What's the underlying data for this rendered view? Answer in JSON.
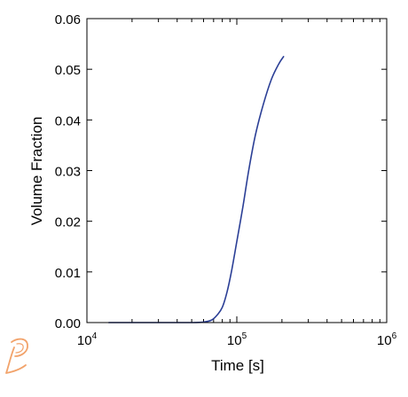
{
  "colors": {
    "line": "#2b3f96",
    "axis": "#000000",
    "logo": "#f2a36b"
  },
  "logo": {
    "icon": "thermo-calc-logo-icon",
    "text": ""
  },
  "chart_data": {
    "type": "line",
    "title": "",
    "xlabel": "Time [s]",
    "ylabel": "Volume Fraction",
    "x_scale": "log",
    "xlim": [
      10000,
      1000000
    ],
    "ylim": [
      0,
      0.06
    ],
    "x_ticks": [
      {
        "value": 10000,
        "base": "10",
        "exp": "4"
      },
      {
        "value": 100000,
        "base": "10",
        "exp": "5"
      },
      {
        "value": 1000000,
        "base": "10",
        "exp": "6"
      }
    ],
    "y_ticks": [
      {
        "value": 0.0,
        "label": "0.00"
      },
      {
        "value": 0.01,
        "label": "0.01"
      },
      {
        "value": 0.02,
        "label": "0.02"
      },
      {
        "value": 0.03,
        "label": "0.03"
      },
      {
        "value": 0.04,
        "label": "0.04"
      },
      {
        "value": 0.05,
        "label": "0.05"
      },
      {
        "value": 0.06,
        "label": "0.06"
      }
    ],
    "grid": false,
    "series": [
      {
        "name": "",
        "points": [
          [
            14000,
            0.0
          ],
          [
            30000,
            0.0
          ],
          [
            50000,
            0.0
          ],
          [
            60000,
            0.0001
          ],
          [
            68000,
            0.0005
          ],
          [
            74000,
            0.0015
          ],
          [
            80000,
            0.003
          ],
          [
            86000,
            0.006
          ],
          [
            92000,
            0.01
          ],
          [
            100000,
            0.016
          ],
          [
            110000,
            0.023
          ],
          [
            120000,
            0.03
          ],
          [
            133000,
            0.037
          ],
          [
            150000,
            0.043
          ],
          [
            170000,
            0.048
          ],
          [
            190000,
            0.051
          ],
          [
            205000,
            0.0525
          ]
        ]
      }
    ]
  }
}
